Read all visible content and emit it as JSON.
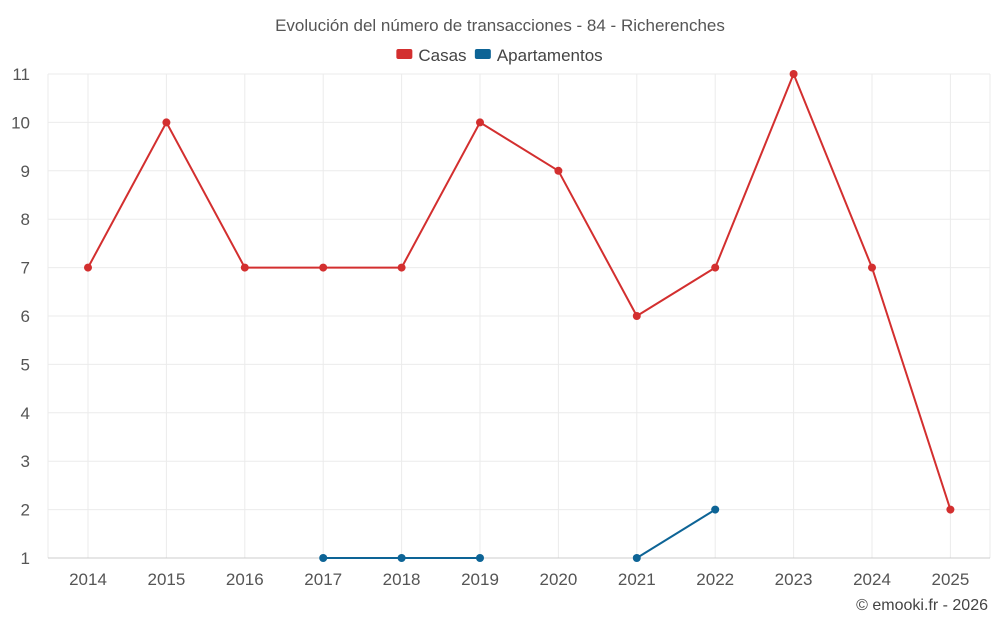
{
  "chart_data": {
    "type": "line",
    "title": "Evolución del número de transacciones - 84 - Richerenches",
    "xlabel": "",
    "ylabel": "",
    "categories": [
      "2014",
      "2015",
      "2016",
      "2017",
      "2018",
      "2019",
      "2020",
      "2021",
      "2022",
      "2023",
      "2024",
      "2025"
    ],
    "y_ticks": [
      1,
      2,
      3,
      4,
      5,
      6,
      7,
      8,
      9,
      10,
      11
    ],
    "ylim": [
      1,
      11
    ],
    "grid": true,
    "legend_position": "top-center",
    "series": [
      {
        "name": "Casas",
        "color": "#d32f2f",
        "values": [
          7,
          10,
          7,
          7,
          7,
          10,
          9,
          6,
          7,
          11,
          7,
          2
        ]
      },
      {
        "name": "Apartamentos",
        "color": "#0d6496",
        "values": [
          null,
          null,
          null,
          1,
          1,
          1,
          null,
          1,
          2,
          null,
          null,
          null
        ]
      }
    ]
  },
  "credit": "© emooki.fr - 2026"
}
